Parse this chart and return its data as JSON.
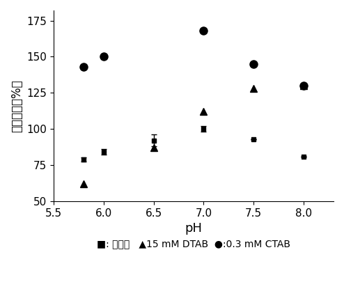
{
  "title": "",
  "xlabel": "pH",
  "ylabel": "相对活性（%）",
  "xlim": [
    5.5,
    8.3
  ],
  "ylim": [
    50,
    182
  ],
  "yticks": [
    50,
    75,
    100,
    125,
    150,
    175
  ],
  "xticks": [
    5.5,
    6.0,
    6.5,
    7.0,
    7.5,
    8.0
  ],
  "xticklabels": [
    "5.5",
    "6.0",
    "6.5",
    "7.0",
    "7.5",
    "8.0"
  ],
  "crude_x": [
    5.8,
    6.0,
    6.5,
    7.0,
    7.5,
    8.0
  ],
  "crude_y": [
    79,
    84,
    92,
    100,
    93,
    81
  ],
  "crude_yerr": [
    1.5,
    2.0,
    4.0,
    2.0,
    0,
    0
  ],
  "dtab_x": [
    5.8,
    6.5,
    7.0,
    7.5,
    8.0
  ],
  "dtab_y": [
    62,
    87,
    112,
    128,
    130
  ],
  "ctab_x": [
    5.8,
    6.0,
    7.0,
    7.5,
    8.0
  ],
  "ctab_y": [
    143,
    150,
    168,
    145,
    130
  ],
  "legend_text": "■: 粗酶；   ▲15 mM DTAB  ●:0.3 mM CTAB",
  "background_color": "#ffffff"
}
